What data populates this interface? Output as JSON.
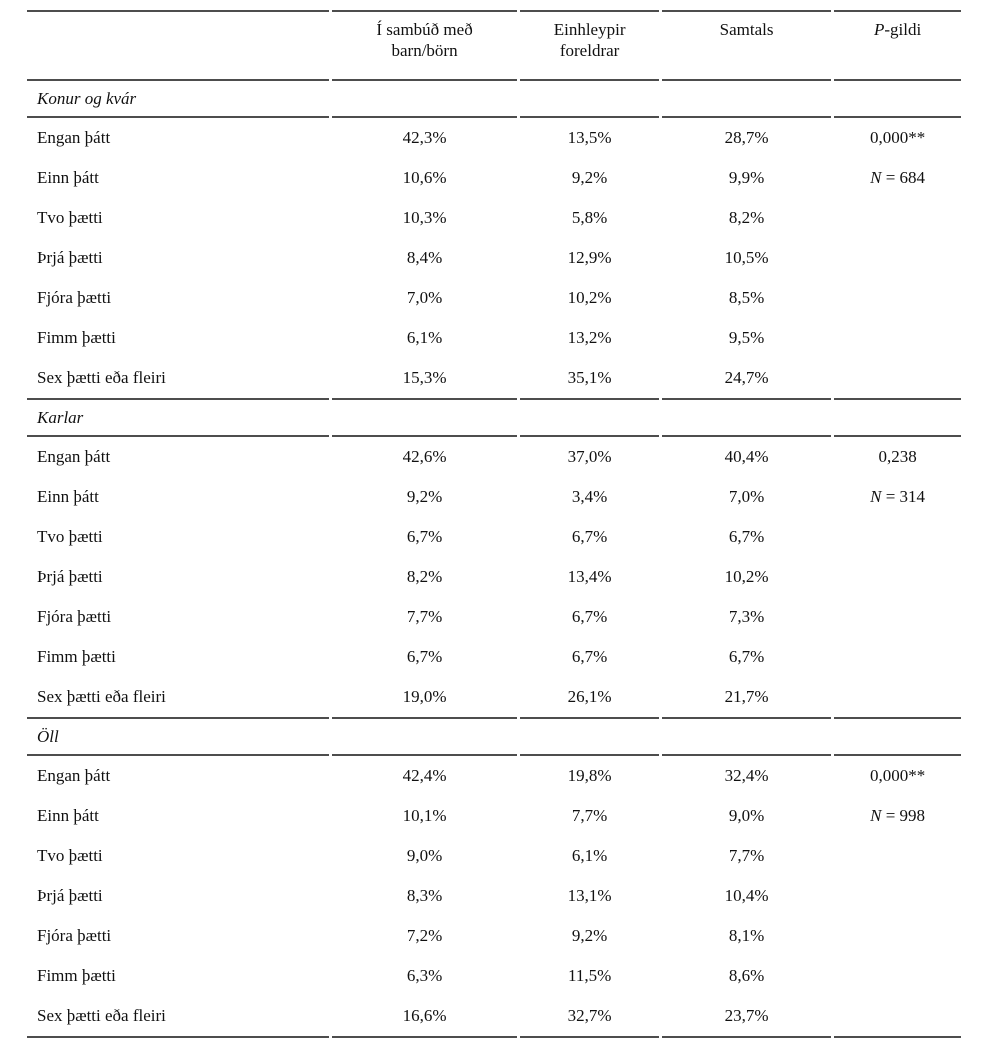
{
  "header": {
    "stub": "",
    "col1_line1": "Í sambúð með",
    "col1_line2": "barn/börn",
    "col2_line1": "Einhleypir",
    "col2_line2": "foreldrar",
    "col3": "Samtals",
    "p_italic": "P",
    "p_rest": "-gildi"
  },
  "rule_color": "#4d4d4d",
  "sections": [
    {
      "title": "Konur og kvár",
      "p_value": "0,000**",
      "n_italic": "N",
      "n_rest": " = 684",
      "rows": [
        {
          "label": "Engan þátt",
          "v1": "42,3%",
          "v2": "13,5%",
          "v3": "28,7%"
        },
        {
          "label": "Einn þátt",
          "v1": "10,6%",
          "v2": "9,2%",
          "v3": "9,9%"
        },
        {
          "label": "Tvo þætti",
          "v1": "10,3%",
          "v2": "5,8%",
          "v3": "8,2%"
        },
        {
          "label": "Þrjá þætti",
          "v1": "8,4%",
          "v2": "12,9%",
          "v3": "10,5%"
        },
        {
          "label": "Fjóra þætti",
          "v1": "7,0%",
          "v2": "10,2%",
          "v3": "8,5%"
        },
        {
          "label": "Fimm þætti",
          "v1": "6,1%",
          "v2": "13,2%",
          "v3": "9,5%"
        },
        {
          "label": "Sex þætti eða fleiri",
          "v1": "15,3%",
          "v2": "35,1%",
          "v3": "24,7%"
        }
      ]
    },
    {
      "title": "Karlar",
      "p_value": "0,238",
      "n_italic": "N",
      "n_rest": " = 314",
      "rows": [
        {
          "label": "Engan þátt",
          "v1": "42,6%",
          "v2": "37,0%",
          "v3": "40,4%"
        },
        {
          "label": "Einn þátt",
          "v1": "9,2%",
          "v2": "3,4%",
          "v3": "7,0%"
        },
        {
          "label": "Tvo þætti",
          "v1": "6,7%",
          "v2": "6,7%",
          "v3": "6,7%"
        },
        {
          "label": "Þrjá þætti",
          "v1": "8,2%",
          "v2": "13,4%",
          "v3": "10,2%"
        },
        {
          "label": "Fjóra þætti",
          "v1": "7,7%",
          "v2": "6,7%",
          "v3": "7,3%"
        },
        {
          "label": "Fimm þætti",
          "v1": "6,7%",
          "v2": "6,7%",
          "v3": "6,7%"
        },
        {
          "label": "Sex þætti eða fleiri",
          "v1": "19,0%",
          "v2": "26,1%",
          "v3": "21,7%"
        }
      ]
    },
    {
      "title": "Öll",
      "p_value": "0,000**",
      "n_italic": "N",
      "n_rest": " = 998",
      "rows": [
        {
          "label": "Engan þátt",
          "v1": "42,4%",
          "v2": "19,8%",
          "v3": "32,4%"
        },
        {
          "label": "Einn þátt",
          "v1": "10,1%",
          "v2": "7,7%",
          "v3": "9,0%"
        },
        {
          "label": "Tvo þætti",
          "v1": "9,0%",
          "v2": "6,1%",
          "v3": "7,7%"
        },
        {
          "label": "Þrjá þætti",
          "v1": "8,3%",
          "v2": "13,1%",
          "v3": "10,4%"
        },
        {
          "label": "Fjóra þætti",
          "v1": "7,2%",
          "v2": "9,2%",
          "v3": "8,1%"
        },
        {
          "label": "Fimm þætti",
          "v1": "6,3%",
          "v2": "11,5%",
          "v3": "8,6%"
        },
        {
          "label": "Sex þætti eða fleiri",
          "v1": "16,6%",
          "v2": "32,7%",
          "v3": "23,7%"
        }
      ]
    }
  ]
}
